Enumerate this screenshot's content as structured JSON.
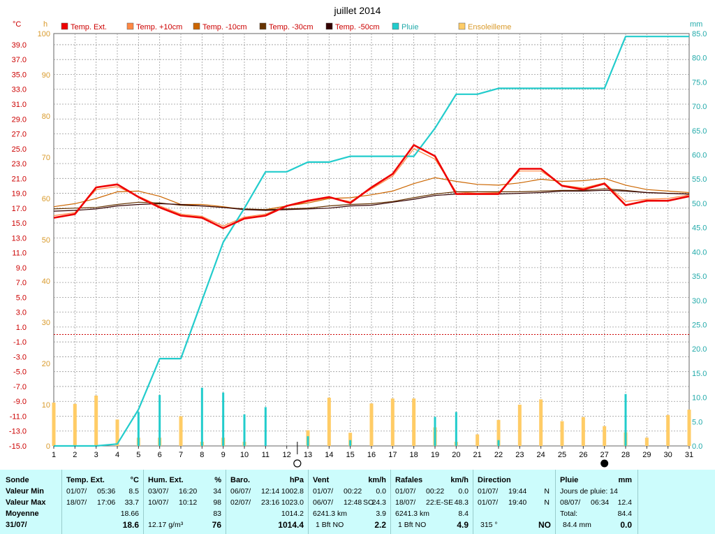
{
  "chart_data": {
    "type": "line",
    "title": "juillet 2014",
    "x": [
      1,
      2,
      3,
      4,
      5,
      6,
      7,
      8,
      9,
      10,
      11,
      12,
      13,
      14,
      15,
      16,
      17,
      18,
      19,
      20,
      21,
      22,
      23,
      24,
      25,
      26,
      27,
      28,
      29,
      30,
      31
    ],
    "left_axis": {
      "unit": "°C",
      "range": [
        -15.0,
        40.5
      ],
      "ticks": [
        "39.0",
        "37.0",
        "35.0",
        "33.0",
        "31.0",
        "29.0",
        "27.0",
        "25.0",
        "23.0",
        "21.0",
        "19.0",
        "17.0",
        "15.0",
        "13.0",
        "11.0",
        "9.0",
        "7.0",
        "5.0",
        "3.0",
        "1.0",
        "-1.0",
        "-3.0",
        "-5.0",
        "-7.0",
        "-9.0",
        "-11.0",
        "-13.0",
        "-15.0"
      ]
    },
    "hours_axis": {
      "unit": "h",
      "range": [
        0,
        100
      ],
      "ticks": [
        "100",
        "90",
        "80",
        "70",
        "60",
        "50",
        "40",
        "30",
        "20",
        "10",
        "0"
      ]
    },
    "right_axis": {
      "unit": "mm",
      "range": [
        0,
        85
      ],
      "ticks": [
        "85.0",
        "80.0",
        "75.0",
        "70.0",
        "65.0",
        "60.0",
        "55.0",
        "50.0",
        "45.0",
        "40.0",
        "35.0",
        "30.0",
        "25.0",
        "20.0",
        "15.0",
        "10.0",
        "5.0",
        "0.0"
      ]
    },
    "zero_line_celsius": 0,
    "series": [
      {
        "name": "Temp. Ext.",
        "color": "#ee0000",
        "axis": "celsius",
        "width": 2.6,
        "values": [
          15.7,
          16.2,
          19.8,
          20.2,
          18.5,
          17.1,
          16.0,
          15.7,
          14.3,
          15.6,
          16.0,
          17.3,
          18.0,
          18.5,
          17.7,
          19.8,
          21.6,
          25.5,
          24.0,
          18.9,
          18.9,
          18.9,
          22.3,
          22.3,
          20.0,
          19.5,
          20.3,
          17.4,
          18.0,
          18.0,
          18.6
        ]
      },
      {
        "name": "Temp. +10cm",
        "color": "#ff8844",
        "axis": "celsius",
        "width": 1.2,
        "values": [
          16.0,
          16.4,
          19.5,
          19.9,
          18.6,
          17.3,
          16.2,
          15.9,
          14.6,
          15.8,
          16.2,
          17.3,
          17.9,
          18.4,
          17.9,
          19.6,
          21.3,
          25.0,
          23.6,
          19.2,
          19.0,
          19.1,
          22.0,
          22.0,
          20.1,
          19.7,
          20.4,
          17.9,
          18.2,
          18.3,
          18.8
        ]
      },
      {
        "name": "Temp. -10cm",
        "color": "#cc6600",
        "axis": "celsius",
        "width": 1.2,
        "values": [
          17.2,
          17.6,
          18.3,
          19.2,
          19.3,
          18.6,
          17.5,
          17.5,
          17.2,
          16.8,
          16.8,
          17.3,
          17.7,
          18.3,
          18.4,
          18.8,
          19.3,
          20.3,
          21.1,
          20.6,
          20.2,
          20.1,
          20.4,
          20.9,
          20.6,
          20.7,
          21.0,
          20.1,
          19.5,
          19.3,
          19.1
        ]
      },
      {
        "name": "Temp. -30cm",
        "color": "#663300",
        "axis": "celsius",
        "width": 1.2,
        "values": [
          16.9,
          17.0,
          17.1,
          17.5,
          17.8,
          17.7,
          17.4,
          17.3,
          17.1,
          16.9,
          16.8,
          16.9,
          17.0,
          17.3,
          17.5,
          17.6,
          17.9,
          18.4,
          18.9,
          19.2,
          19.2,
          19.2,
          19.2,
          19.3,
          19.4,
          19.4,
          19.6,
          19.4,
          19.1,
          19.0,
          18.9
        ]
      },
      {
        "name": "Temp. -50cm",
        "color": "#330000",
        "axis": "celsius",
        "width": 1.2,
        "values": [
          16.6,
          16.7,
          16.9,
          17.3,
          17.5,
          17.6,
          17.5,
          17.3,
          17.1,
          16.8,
          16.7,
          16.8,
          16.9,
          17.0,
          17.3,
          17.4,
          17.8,
          18.2,
          18.7,
          18.9,
          18.9,
          18.9,
          19.0,
          19.1,
          19.3,
          19.3,
          19.4,
          19.3,
          19.1,
          19.0,
          18.9
        ]
      },
      {
        "name": "Pluie",
        "color": "#22cccc",
        "axis": "mm",
        "width": 2.2,
        "values": [
          0.0,
          0.0,
          0.0,
          0.4,
          7.5,
          18.0,
          18.0,
          30.0,
          42.0,
          49.0,
          56.5,
          56.5,
          58.5,
          58.5,
          59.7,
          59.7,
          59.7,
          59.7,
          65.5,
          72.5,
          72.5,
          73.7,
          73.7,
          73.7,
          73.7,
          73.7,
          73.7,
          84.4,
          84.4,
          84.4,
          84.4
        ]
      }
    ],
    "bars": [
      {
        "name": "Ensoleilleme",
        "color": "#ffcc66",
        "axis": "hours",
        "type": "bar",
        "values": [
          10.5,
          10.2,
          12.2,
          6.4,
          2.0,
          2.0,
          7.2,
          1.0,
          2.0,
          1.0,
          0.0,
          0.0,
          3.8,
          11.7,
          3.2,
          10.3,
          11.5,
          11.5,
          4.5,
          1.0,
          2.8,
          6.3,
          10.0,
          11.3,
          6.0,
          7.0,
          4.8,
          3.3,
          2.0,
          7.5,
          8.8
        ]
      },
      {
        "name": "Pluie (jour)",
        "color": "#22cccc",
        "axis": "mm",
        "type": "bar",
        "values": [
          0.0,
          0.0,
          0.0,
          0.0,
          7.0,
          10.5,
          0.0,
          12.0,
          11.0,
          6.5,
          8.0,
          0.0,
          2.0,
          0.0,
          1.2,
          0.0,
          0.0,
          0.0,
          6.0,
          7.0,
          0.0,
          1.2,
          0.0,
          0.0,
          0.0,
          0.0,
          0.0,
          10.7,
          0.0,
          0.0,
          0.0
        ]
      }
    ],
    "legend": [
      "Temp. Ext.",
      "Temp. +10cm",
      "Temp. -10cm",
      "Temp. -30cm",
      "Temp. -50cm",
      "Pluie",
      "Ensoleilleme"
    ],
    "legend_position": "top",
    "grid": true,
    "moon_markers": [
      {
        "day": 12.5,
        "kind": "new-moon"
      },
      {
        "day": 27,
        "kind": "full-moon"
      }
    ]
  },
  "stats": {
    "row_labels": [
      "Sonde",
      "Valeur Min",
      "Valeur Max",
      "Moyenne",
      "31/07/"
    ],
    "temp": {
      "title": "Temp. Ext.",
      "unit": "°C",
      "min_date": "01/07/",
      "min_time": "05:36",
      "min": "8.5",
      "max_date": "18/07/",
      "max_time": "17:06",
      "max": "33.7",
      "avg": "18.66",
      "last": "18.6"
    },
    "hum": {
      "title": "Hum. Ext.",
      "unit": "%",
      "min_date": "03/07/",
      "min_time": "16:20",
      "min": "34",
      "max_date": "10/07/",
      "max_time": "10:12",
      "max": "98",
      "avg": "83",
      "extra": "12.17 g/m³",
      "last": "76"
    },
    "baro": {
      "title": "Baro.",
      "unit": "hPa",
      "min_date": "06/07/",
      "min_time": "12:14",
      "min": "1002.8",
      "max_date": "02/07/",
      "max_time": "23:16",
      "max": "1023.0",
      "avg": "1014.2",
      "last": "1014.4"
    },
    "vent": {
      "title": "Vent",
      "unit": "km/h",
      "min_date": "01/07/",
      "min_time": "00:22",
      "min": "0.0",
      "max_date": "06/07/",
      "max_time": "12:48",
      "max_dir": "SO",
      "max": "24.3",
      "avg_dist": "6241.3 km",
      "avg": "3.9",
      "last_bft": "1 Bft NO",
      "last": "2.2"
    },
    "rafales": {
      "title": "Rafales",
      "unit": "km/h",
      "min_date": "01/07/",
      "min_time": "00:22",
      "min": "0.0",
      "max_date": "18/07/",
      "max_time": "22:E-SE",
      "max": "48.3",
      "avg_dist": "6241.3 km",
      "avg": "8.4",
      "last_bft": "1 Bft NO",
      "last": "4.9"
    },
    "direction": {
      "title": "Direction",
      "min_date": "01/07/",
      "min_time": "19:44",
      "min": "N",
      "max_date": "01/07/",
      "max_time": "19:40",
      "max": "N",
      "last_deg": "315 °",
      "last": "NO"
    },
    "pluie": {
      "title": "Pluie",
      "unit": "mm",
      "rain_days": "Jours de pluie: 14",
      "max_date": "08/07/",
      "max_time": "06:34",
      "max": "12.4",
      "total_lbl": "Total:",
      "total": "84.4",
      "last_total": "84.4 mm",
      "last": "0.0"
    }
  }
}
